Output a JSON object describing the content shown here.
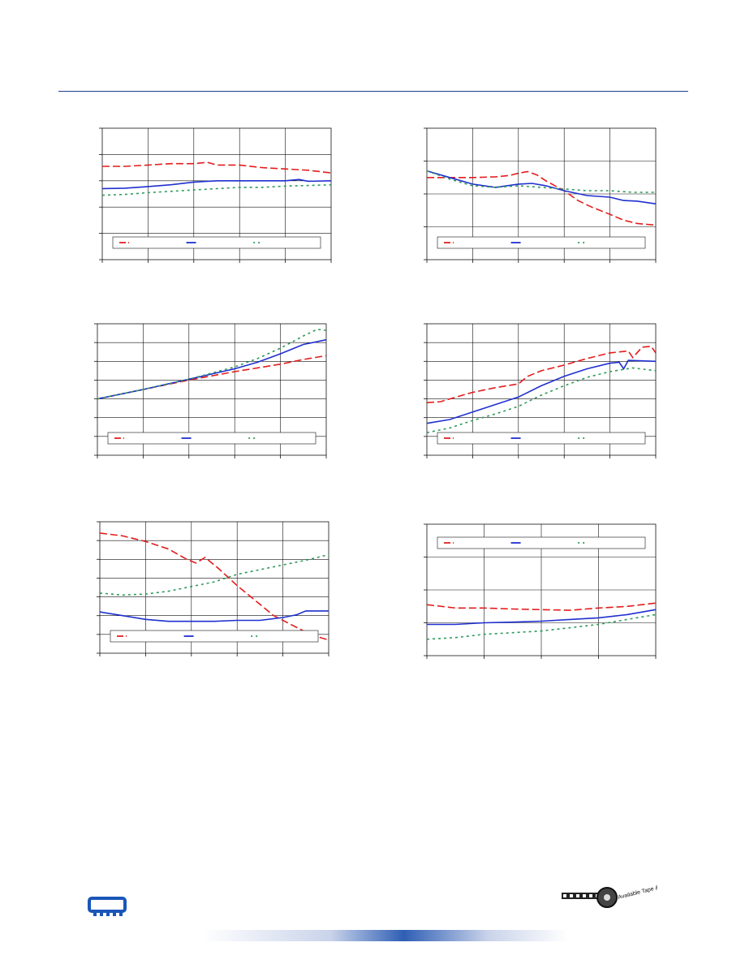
{
  "colors": {
    "red": "#e31c1c",
    "blue": "#1f2fd0",
    "green": "#2f9a5a",
    "grid": "#111111",
    "rule": "#1f3f8f"
  },
  "footer": {
    "logo_icon": "memory-module-icon",
    "stamp_icon": "tape-and-reel-stamp-icon",
    "stamp_text": "Available Tape & Reel"
  },
  "chart_data": [
    {
      "type": "line",
      "grid": true,
      "legend": "bottom",
      "xlim": [
        0,
        5
      ],
      "ylim": [
        0,
        5
      ],
      "series": [
        {
          "x": [
            0,
            0.5,
            1,
            1.5,
            2,
            2.3,
            2.5,
            3,
            3.5,
            4,
            4.5,
            5
          ],
          "y": [
            3.55,
            3.55,
            3.6,
            3.65,
            3.65,
            3.7,
            3.6,
            3.6,
            3.5,
            3.45,
            3.4,
            3.3
          ]
        },
        {
          "x": [
            0,
            0.5,
            1,
            1.5,
            2,
            2.5,
            3,
            3.5,
            4,
            4.3,
            4.5,
            5
          ],
          "y": [
            2.7,
            2.72,
            2.78,
            2.85,
            2.95,
            3.0,
            3.0,
            3.0,
            3.0,
            3.05,
            2.98,
            3.0
          ]
        },
        {
          "x": [
            0,
            0.5,
            1,
            1.5,
            2,
            2.5,
            3,
            3.5,
            4,
            4.5,
            5
          ],
          "y": [
            2.45,
            2.48,
            2.55,
            2.6,
            2.65,
            2.7,
            2.75,
            2.75,
            2.8,
            2.82,
            2.85
          ]
        }
      ]
    },
    {
      "type": "line",
      "grid": true,
      "legend": "bottom",
      "xlim": [
        0,
        5
      ],
      "ylim": [
        0,
        4
      ],
      "series": [
        {
          "x": [
            0,
            0.5,
            1,
            1.5,
            1.8,
            2,
            2.2,
            2.4,
            2.6,
            2.8,
            3,
            3.3,
            3.6,
            4,
            4.3,
            4.6,
            5
          ],
          "y": [
            2.5,
            2.5,
            2.5,
            2.52,
            2.56,
            2.63,
            2.68,
            2.58,
            2.4,
            2.25,
            2.1,
            1.8,
            1.6,
            1.38,
            1.2,
            1.1,
            1.05
          ]
        },
        {
          "x": [
            0,
            0.5,
            1,
            1.5,
            2,
            2.3,
            2.6,
            3,
            3.5,
            4,
            4.3,
            4.6,
            5
          ],
          "y": [
            2.7,
            2.5,
            2.3,
            2.2,
            2.3,
            2.32,
            2.25,
            2.1,
            1.95,
            1.9,
            1.8,
            1.78,
            1.7
          ]
        },
        {
          "x": [
            0,
            0.5,
            1,
            1.5,
            2,
            2.5,
            3,
            3.5,
            4,
            4.5,
            5
          ],
          "y": [
            2.7,
            2.45,
            2.25,
            2.2,
            2.25,
            2.2,
            2.15,
            2.1,
            2.1,
            2.05,
            2.05
          ]
        }
      ]
    },
    {
      "type": "line",
      "grid": true,
      "legend": "bottom",
      "xlim": [
        0,
        5
      ],
      "ylim": [
        0,
        7
      ],
      "series": [
        {
          "x": [
            0,
            1,
            2,
            3,
            4,
            4.5,
            5
          ],
          "y": [
            3.0,
            3.5,
            4.0,
            4.45,
            4.85,
            5.1,
            5.3
          ]
        },
        {
          "x": [
            0,
            1,
            2,
            3,
            3.5,
            4,
            4.5,
            5
          ],
          "y": [
            3.0,
            3.5,
            4.05,
            4.6,
            4.95,
            5.4,
            5.9,
            6.15
          ]
        },
        {
          "x": [
            0,
            1,
            2,
            3,
            3.5,
            4,
            4.5,
            4.8,
            5
          ],
          "y": [
            3.0,
            3.5,
            4.05,
            4.7,
            5.15,
            5.7,
            6.35,
            6.7,
            6.65
          ]
        }
      ]
    },
    {
      "type": "line",
      "grid": true,
      "legend": "bottom",
      "xlim": [
        0,
        5
      ],
      "ylim": [
        0,
        7
      ],
      "series": [
        {
          "x": [
            0,
            0.3,
            0.5,
            1,
            1.5,
            2,
            2.2,
            2.5,
            3,
            3.5,
            4,
            4.2,
            4.4,
            4.5,
            4.7,
            4.9,
            5
          ],
          "y": [
            2.8,
            2.85,
            3.0,
            3.35,
            3.6,
            3.8,
            4.2,
            4.5,
            4.8,
            5.15,
            5.45,
            5.5,
            5.55,
            5.2,
            5.75,
            5.8,
            5.45
          ]
        },
        {
          "x": [
            0,
            0.5,
            1,
            1.5,
            2,
            2.5,
            3,
            3.5,
            4,
            4.2,
            4.3,
            4.4,
            5
          ],
          "y": [
            1.7,
            1.9,
            2.3,
            2.7,
            3.1,
            3.7,
            4.2,
            4.6,
            4.9,
            4.95,
            4.6,
            5.05,
            5.0
          ]
        },
        {
          "x": [
            0,
            0.5,
            1,
            1.5,
            2,
            2.5,
            3,
            3.5,
            4,
            4.5,
            5
          ],
          "y": [
            1.2,
            1.45,
            1.85,
            2.2,
            2.6,
            3.2,
            3.7,
            4.15,
            4.45,
            4.65,
            4.5
          ]
        }
      ]
    },
    {
      "type": "line",
      "grid": true,
      "legend": "bottom",
      "xlim": [
        0,
        5
      ],
      "ylim": [
        0,
        7
      ],
      "series": [
        {
          "x": [
            0,
            0.5,
            1,
            1.5,
            1.9,
            2.1,
            2.3,
            2.6,
            3,
            3.4,
            3.8,
            4.2,
            4.6,
            5
          ],
          "y": [
            6.4,
            6.25,
            5.95,
            5.55,
            5.0,
            4.8,
            5.1,
            4.5,
            3.6,
            2.8,
            2.0,
            1.5,
            1.0,
            0.7
          ]
        },
        {
          "x": [
            0,
            0.5,
            1,
            1.5,
            2,
            2.5,
            3,
            3.5,
            4,
            4.3,
            4.5,
            5
          ],
          "y": [
            2.2,
            2.0,
            1.8,
            1.7,
            1.7,
            1.7,
            1.75,
            1.75,
            1.9,
            2.05,
            2.25,
            2.25
          ]
        },
        {
          "x": [
            0,
            0.5,
            1,
            1.5,
            2,
            2.5,
            3,
            3.5,
            4,
            4.5,
            5
          ],
          "y": [
            3.2,
            3.1,
            3.15,
            3.3,
            3.55,
            3.8,
            4.2,
            4.45,
            4.7,
            4.95,
            5.25
          ]
        }
      ]
    },
    {
      "type": "line",
      "grid": true,
      "legend": "top",
      "xlim": [
        0,
        4
      ],
      "ylim": [
        0,
        4
      ],
      "series": [
        {
          "x": [
            0,
            0.5,
            1,
            1.5,
            2,
            2.5,
            3,
            3.5,
            4
          ],
          "y": [
            1.55,
            1.45,
            1.45,
            1.42,
            1.4,
            1.38,
            1.45,
            1.5,
            1.6
          ]
        },
        {
          "x": [
            0,
            0.5,
            1,
            1.5,
            2,
            2.5,
            3,
            3.5,
            4
          ],
          "y": [
            0.95,
            0.95,
            1.0,
            1.02,
            1.05,
            1.1,
            1.15,
            1.25,
            1.4
          ]
        },
        {
          "x": [
            0,
            0.5,
            1,
            1.5,
            2,
            2.5,
            3,
            3.5,
            4
          ],
          "y": [
            0.5,
            0.55,
            0.65,
            0.7,
            0.75,
            0.85,
            0.95,
            1.1,
            1.25
          ]
        }
      ]
    }
  ]
}
